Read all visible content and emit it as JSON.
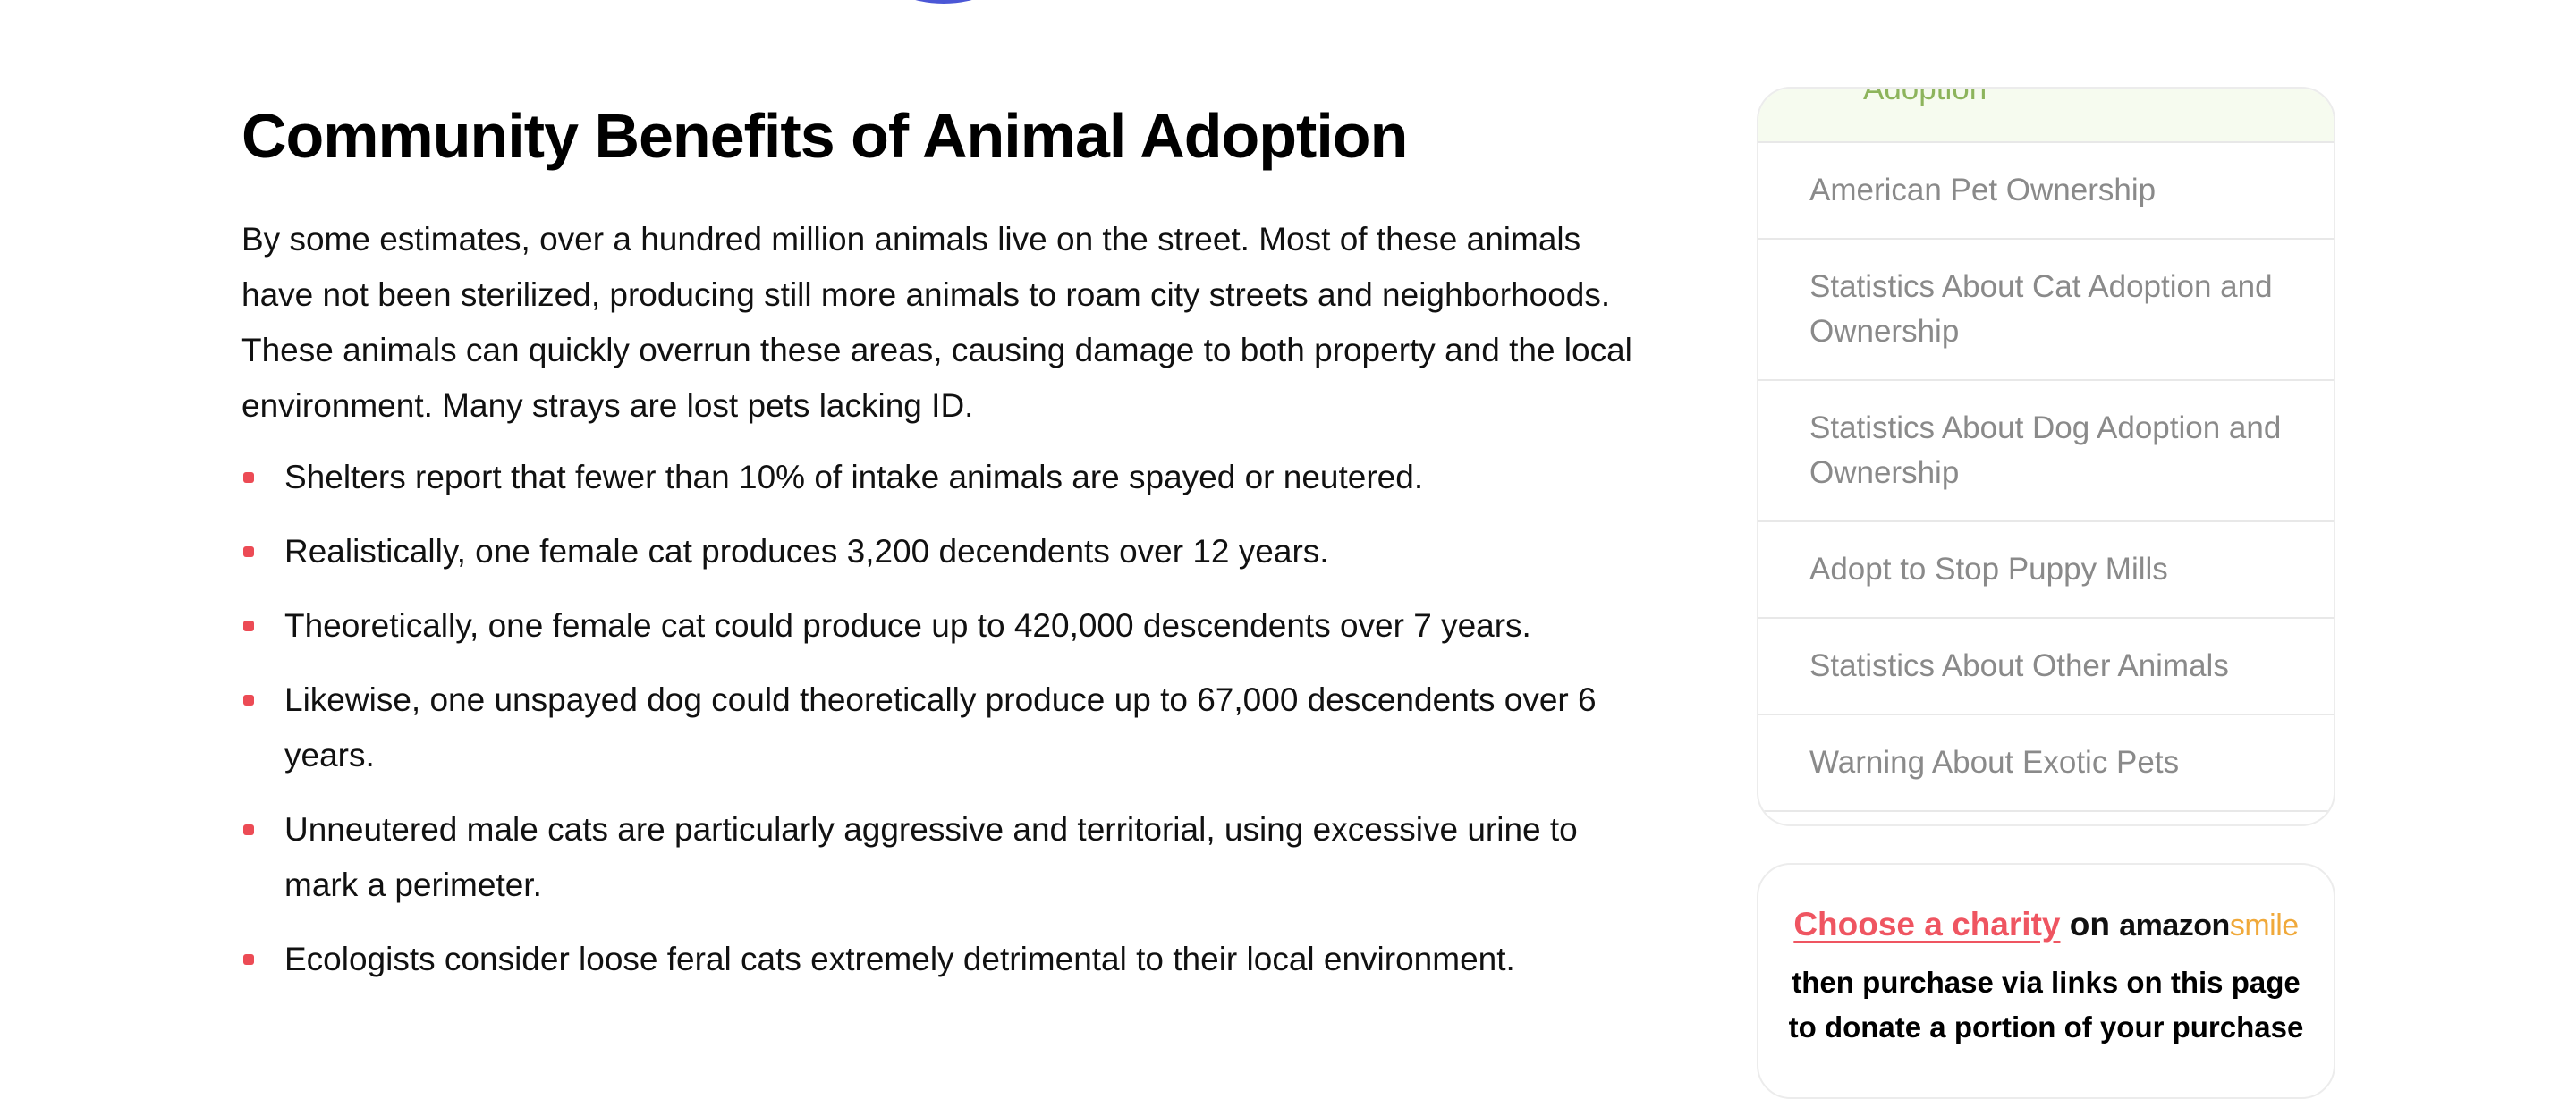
{
  "article": {
    "heading": "Community Benefits of Animal Adoption",
    "paragraph": "By some estimates, over a hundred million animals live on the street. Most of these animals have not been sterilized, producing still more animals to roam city streets and neighborhoods. These animals can quickly overrun these areas, causing damage to both property and the local environment. Many strays are lost pets lacking ID.",
    "bullets": [
      "Shelters report that fewer than 10% of intake animals are spayed or neutered.",
      "Realistically, one female cat produces 3,200 decendents over 12 years.",
      "Theoretically, one female cat could produce up to 420,000 descendents over 7 years.",
      "Likewise, one unspayed dog could theoretically produce up to 67,000 descendents over 6 years.",
      "Unneutered male cats are particularly aggressive and territorial, using excessive urine to mark a perimeter.",
      "Ecologists consider loose feral cats extremely detrimental to their local environment."
    ]
  },
  "sidebar": {
    "toc_active": "Adoption",
    "toc": [
      "American Pet Ownership",
      "Statistics About Cat Adoption and Ownership",
      "Statistics About Dog Adoption and Ownership",
      "Adopt to Stop Puppy Mills",
      "Statistics About Other Animals",
      "Warning About Exotic Pets"
    ],
    "charity": {
      "link": "Choose a charity",
      "on": "on",
      "logo_main": "amazon",
      "logo_accent": "smile",
      "text": "then purchase via links on this page to donate a portion of your purchase"
    }
  }
}
